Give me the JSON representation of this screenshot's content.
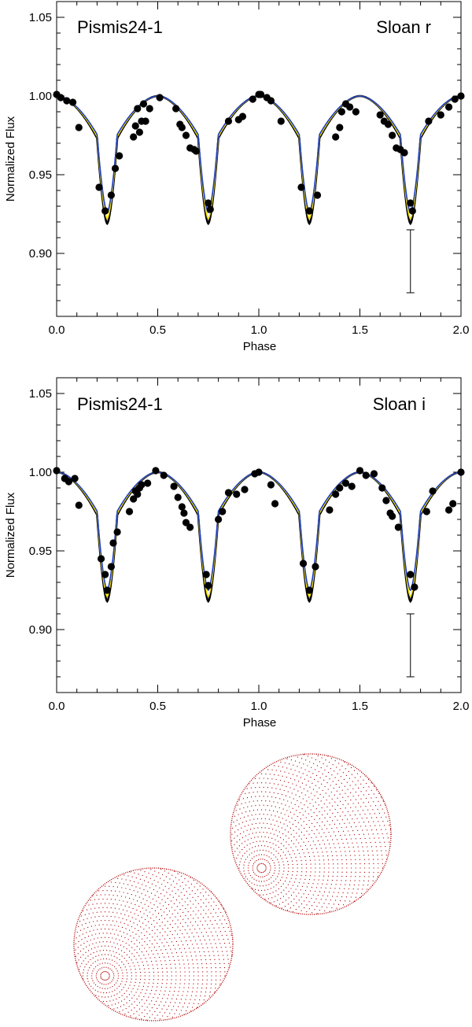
{
  "chart_data": [
    {
      "type": "line",
      "star_label": "Pismis24-1",
      "band_label": "Sloan r",
      "xlabel": "Phase",
      "ylabel": "Normalized Flux",
      "xlim": [
        0.0,
        2.0
      ],
      "ylim": [
        0.86,
        1.06
      ],
      "x_ticks": [
        0.0,
        0.5,
        1.0,
        1.5,
        2.0
      ],
      "x_tick_labels": [
        "0.0",
        "0.5",
        "1.0",
        "1.5",
        "2.0"
      ],
      "y_ticks": [
        0.9,
        0.95,
        1.0,
        1.05
      ],
      "y_tick_labels": [
        "0.90",
        "0.95",
        "1.00",
        "1.05"
      ],
      "model_minima": {
        "black": 0.919,
        "yellow": 0.922,
        "blue": 0.926
      },
      "colors": {
        "black": "#000000",
        "yellow": "#f5e000",
        "blue": "#1f3fbf"
      },
      "error_bar": {
        "x": 1.75,
        "y_low": 0.875,
        "y_high": 0.915
      },
      "points": [
        [
          0.0,
          1.001
        ],
        [
          0.02,
          0.999
        ],
        [
          0.05,
          0.997
        ],
        [
          0.08,
          0.996
        ],
        [
          0.11,
          0.98
        ],
        [
          0.21,
          0.942
        ],
        [
          0.24,
          0.927
        ],
        [
          0.27,
          0.937
        ],
        [
          0.29,
          0.954
        ],
        [
          0.31,
          0.962
        ],
        [
          0.38,
          0.974
        ],
        [
          0.39,
          0.981
        ],
        [
          0.4,
          0.992
        ],
        [
          0.41,
          0.977
        ],
        [
          0.42,
          0.984
        ],
        [
          0.43,
          0.995
        ],
        [
          0.44,
          0.984
        ],
        [
          0.46,
          0.992
        ],
        [
          0.51,
          0.999
        ],
        [
          0.59,
          0.992
        ],
        [
          0.61,
          0.982
        ],
        [
          0.62,
          0.98
        ],
        [
          0.64,
          0.975
        ],
        [
          0.66,
          0.967
        ],
        [
          0.68,
          0.966
        ],
        [
          0.69,
          0.965
        ],
        [
          0.75,
          0.932
        ],
        [
          0.76,
          0.928
        ],
        [
          0.85,
          0.984
        ],
        [
          0.9,
          0.985
        ],
        [
          0.92,
          0.987
        ],
        [
          0.97,
          0.998
        ],
        [
          1.0,
          1.001
        ],
        [
          1.01,
          1.001
        ],
        [
          1.04,
          0.999
        ],
        [
          1.06,
          0.997
        ],
        [
          1.11,
          0.984
        ],
        [
          1.21,
          0.942
        ],
        [
          1.25,
          0.927
        ],
        [
          1.29,
          0.937
        ],
        [
          1.38,
          0.974
        ],
        [
          1.4,
          0.98
        ],
        [
          1.41,
          0.99
        ],
        [
          1.43,
          0.995
        ],
        [
          1.45,
          0.993
        ],
        [
          1.48,
          0.99
        ],
        [
          1.6,
          0.988
        ],
        [
          1.62,
          0.984
        ],
        [
          1.64,
          0.982
        ],
        [
          1.66,
          0.975
        ],
        [
          1.68,
          0.967
        ],
        [
          1.7,
          0.966
        ],
        [
          1.72,
          0.964
        ],
        [
          1.75,
          0.932
        ],
        [
          1.76,
          0.927
        ],
        [
          1.84,
          0.984
        ],
        [
          1.9,
          0.988
        ],
        [
          1.94,
          0.993
        ],
        [
          1.97,
          0.998
        ],
        [
          2.0,
          1.0
        ]
      ]
    },
    {
      "type": "line",
      "star_label": "Pismis24-1",
      "band_label": "Sloan i",
      "xlabel": "Phase",
      "ylabel": "Normalized Flux",
      "xlim": [
        0.0,
        2.0
      ],
      "ylim": [
        0.86,
        1.06
      ],
      "x_ticks": [
        0.0,
        0.5,
        1.0,
        1.5,
        2.0
      ],
      "x_tick_labels": [
        "0.0",
        "0.5",
        "1.0",
        "1.5",
        "2.0"
      ],
      "y_ticks": [
        0.9,
        0.95,
        1.0,
        1.05
      ],
      "y_tick_labels": [
        "0.90",
        "0.95",
        "1.00",
        "1.05"
      ],
      "model_minima": {
        "black": 0.918,
        "yellow": 0.921,
        "blue": 0.925
      },
      "colors": {
        "black": "#000000",
        "yellow": "#f5e000",
        "blue": "#1f3fbf"
      },
      "error_bar": {
        "x": 1.75,
        "y_low": 0.87,
        "y_high": 0.91
      },
      "points": [
        [
          0.0,
          1.001
        ],
        [
          0.04,
          0.996
        ],
        [
          0.06,
          0.994
        ],
        [
          0.09,
          0.996
        ],
        [
          0.11,
          0.979
        ],
        [
          0.22,
          0.945
        ],
        [
          0.24,
          0.935
        ],
        [
          0.25,
          0.925
        ],
        [
          0.27,
          0.94
        ],
        [
          0.28,
          0.955
        ],
        [
          0.3,
          0.962
        ],
        [
          0.36,
          0.975
        ],
        [
          0.38,
          0.983
        ],
        [
          0.39,
          0.988
        ],
        [
          0.4,
          0.986
        ],
        [
          0.41,
          0.99
        ],
        [
          0.42,
          0.992
        ],
        [
          0.45,
          0.993
        ],
        [
          0.49,
          1.001
        ],
        [
          0.53,
          0.998
        ],
        [
          0.58,
          0.991
        ],
        [
          0.6,
          0.984
        ],
        [
          0.62,
          0.978
        ],
        [
          0.63,
          0.974
        ],
        [
          0.64,
          0.968
        ],
        [
          0.66,
          0.965
        ],
        [
          0.74,
          0.935
        ],
        [
          0.75,
          0.928
        ],
        [
          0.8,
          0.97
        ],
        [
          0.82,
          0.975
        ],
        [
          0.85,
          0.987
        ],
        [
          0.89,
          0.986
        ],
        [
          0.93,
          0.989
        ],
        [
          0.98,
          0.999
        ],
        [
          1.0,
          1.0
        ],
        [
          1.06,
          0.992
        ],
        [
          1.08,
          0.98
        ],
        [
          1.22,
          0.942
        ],
        [
          1.25,
          0.925
        ],
        [
          1.28,
          0.94
        ],
        [
          1.35,
          0.976
        ],
        [
          1.38,
          0.986
        ],
        [
          1.4,
          0.99
        ],
        [
          1.43,
          0.993
        ],
        [
          1.46,
          0.991
        ],
        [
          1.5,
          1.001
        ],
        [
          1.53,
          0.998
        ],
        [
          1.57,
          0.999
        ],
        [
          1.61,
          0.99
        ],
        [
          1.63,
          0.982
        ],
        [
          1.65,
          0.974
        ],
        [
          1.66,
          0.972
        ],
        [
          1.69,
          0.965
        ],
        [
          1.75,
          0.935
        ],
        [
          1.77,
          0.927
        ],
        [
          1.83,
          0.975
        ],
        [
          1.86,
          0.988
        ],
        [
          1.94,
          0.976
        ],
        [
          1.96,
          0.98
        ],
        [
          2.0,
          1.0
        ]
      ]
    }
  ],
  "model_render": {
    "stars": [
      {
        "name": "primary",
        "color": "#b00000"
      },
      {
        "name": "secondary",
        "color": "#b00000"
      }
    ]
  }
}
